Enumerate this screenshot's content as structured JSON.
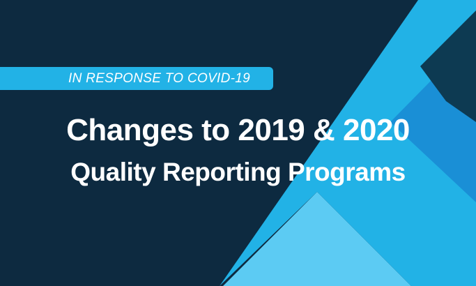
{
  "banner": {
    "tag": "IN RESPONSE TO COVID-19",
    "title_line1": "Changes to 2019 & 2020",
    "title_line2": "Quality Reporting Programs"
  },
  "colors": {
    "background": "#0d2a40",
    "tag_background": "#22b2e6",
    "shape_light": "#5ccbf3",
    "shape_mid": "#22b2e6",
    "shape_blue": "#1a8fd6",
    "shape_dark": "#0d3a52",
    "text": "#ffffff"
  }
}
